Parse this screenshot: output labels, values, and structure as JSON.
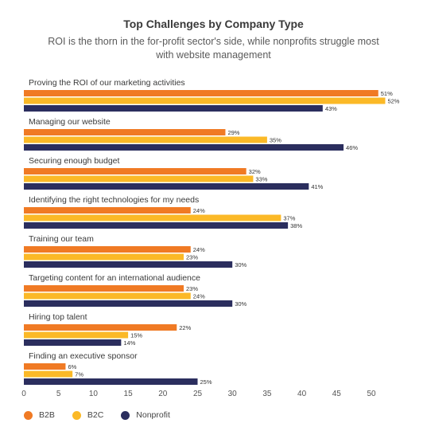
{
  "chart_data": {
    "type": "bar",
    "orientation": "horizontal",
    "title": "Top Challenges by Company Type",
    "subtitle": "ROI is the thorn in the for-profit sector's side, while nonprofits struggle most with website management",
    "categories": [
      "Proving the ROI of our marketing activities",
      "Managing our website",
      "Securing enough budget",
      "Identifying the right technologies for my needs",
      "Training our team",
      "Targeting content for an international audience",
      "Hiring top talent",
      "Finding an executive sponsor"
    ],
    "series": [
      {
        "name": "B2B",
        "color": "#f07a24",
        "values": [
          51,
          29,
          32,
          24,
          24,
          23,
          22,
          6
        ]
      },
      {
        "name": "B2C",
        "color": "#fbb927",
        "values": [
          52,
          35,
          33,
          37,
          23,
          24,
          15,
          7
        ]
      },
      {
        "name": "Nonprofit",
        "color": "#2b2e5e",
        "values": [
          43,
          46,
          41,
          38,
          30,
          30,
          14,
          25
        ]
      }
    ],
    "value_suffix": "%",
    "xlim": [
      0,
      50
    ],
    "xticks": [
      0,
      5,
      10,
      15,
      20,
      25,
      30,
      35,
      40,
      45,
      50
    ],
    "grid": false,
    "legend_position": "bottom-left"
  }
}
